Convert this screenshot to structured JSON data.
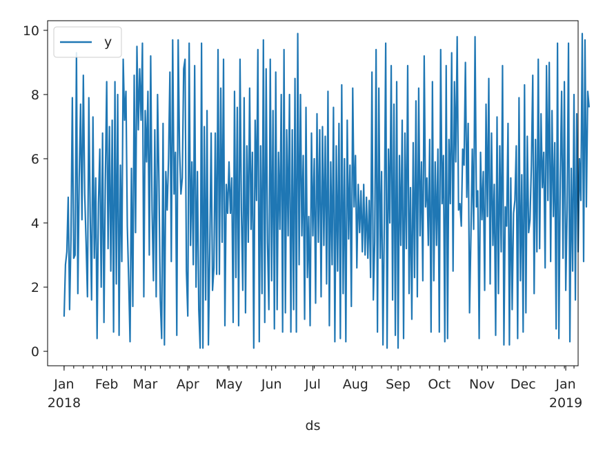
{
  "chart_data": {
    "type": "line",
    "xlabel": "ds",
    "ylabel": "",
    "xlim": [
      "2017-12-20",
      "2019-01-10"
    ],
    "ylim": [
      -0.45,
      10.3
    ],
    "yticks": [
      0,
      2,
      4,
      6,
      8,
      10
    ],
    "xticks": [
      {
        "date": "2018-01-01",
        "label": "Jan",
        "sublabel": "2018"
      },
      {
        "date": "2018-02-01",
        "label": "Feb",
        "sublabel": ""
      },
      {
        "date": "2018-03-01",
        "label": "Mar",
        "sublabel": ""
      },
      {
        "date": "2018-04-01",
        "label": "Apr",
        "sublabel": ""
      },
      {
        "date": "2018-05-01",
        "label": "May",
        "sublabel": ""
      },
      {
        "date": "2018-06-01",
        "label": "Jun",
        "sublabel": ""
      },
      {
        "date": "2018-07-01",
        "label": "Jul",
        "sublabel": ""
      },
      {
        "date": "2018-08-01",
        "label": "Aug",
        "sublabel": ""
      },
      {
        "date": "2018-09-01",
        "label": "Sep",
        "sublabel": ""
      },
      {
        "date": "2018-10-01",
        "label": "Oct",
        "sublabel": ""
      },
      {
        "date": "2018-11-01",
        "label": "Nov",
        "sublabel": ""
      },
      {
        "date": "2018-12-01",
        "label": "Dec",
        "sublabel": ""
      },
      {
        "date": "2019-01-01",
        "label": "Jan",
        "sublabel": "2019"
      }
    ],
    "legend": {
      "position": "top-left",
      "entries": [
        "y"
      ]
    },
    "grid": false,
    "series": [
      {
        "name": "y",
        "color": "#1f77b4",
        "x_start": "2018-01-01",
        "x_step_days": 1,
        "values": [
          1.08,
          2.7,
          3.1,
          4.8,
          1.3,
          3.5,
          7.9,
          2.9,
          3.0,
          9.3,
          1.8,
          5.4,
          7.7,
          4.1,
          8.6,
          4.9,
          3.4,
          1.7,
          7.9,
          4.2,
          1.6,
          7.3,
          2.9,
          5.4,
          0.4,
          4.6,
          6.3,
          2.0,
          6.8,
          0.9,
          5.3,
          8.4,
          3.2,
          7.0,
          2.5,
          7.2,
          0.6,
          8.4,
          2.1,
          8.0,
          0.5,
          5.8,
          2.8,
          9.1,
          7.2,
          8.1,
          3.9,
          2.2,
          0.3,
          5.7,
          1.4,
          8.6,
          3.7,
          9.5,
          6.9,
          8.8,
          7.2,
          9.6,
          1.7,
          7.5,
          5.9,
          8.1,
          3.0,
          9.2,
          4.4,
          2.2,
          6.9,
          1.7,
          8.0,
          5.3,
          1.6,
          0.4,
          7.1,
          0.2,
          5.6,
          4.4,
          6.0,
          8.7,
          2.8,
          9.7,
          4.9,
          6.2,
          0.5,
          9.7,
          6.3,
          4.9,
          5.4,
          8.8,
          9.1,
          2.5,
          1.1,
          9.6,
          3.3,
          5.9,
          2.7,
          8.9,
          2.0,
          5.6,
          1.3,
          0.1,
          9.6,
          0.1,
          7.0,
          1.6,
          7.5,
          0.2,
          3.2,
          6.8,
          1.9,
          2.6,
          6.8,
          2.4,
          9.4,
          2.4,
          8.2,
          3.4,
          9.1,
          0.8,
          5.2,
          4.3,
          5.9,
          4.3,
          5.4,
          0.9,
          8.1,
          2.3,
          7.6,
          0.8,
          9.1,
          4.4,
          1.9,
          7.9,
          1.2,
          6.4,
          3.4,
          8.2,
          3.8,
          6.2,
          0.1,
          7.2,
          4.7,
          9.4,
          0.3,
          6.4,
          1.8,
          9.7,
          0.9,
          8.8,
          3.4,
          1.3,
          9.1,
          2.2,
          7.5,
          0.7,
          8.7,
          1.3,
          6.2,
          3.8,
          8.0,
          0.6,
          9.4,
          1.2,
          6.9,
          3.6,
          8.0,
          0.6,
          6.9,
          1.3,
          8.5,
          0.6,
          9.9,
          2.7,
          8.0,
          3.6,
          6.1,
          1.0,
          7.6,
          2.3,
          4.2,
          0.8,
          6.8,
          3.6,
          6.0,
          1.5,
          7.4,
          3.4,
          6.9,
          1.7,
          7.0,
          3.3,
          6.7,
          2.1,
          8.1,
          0.8,
          5.9,
          2.7,
          7.6,
          0.3,
          6.4,
          2.5,
          7.1,
          0.4,
          8.3,
          1.8,
          6.0,
          0.3,
          7.2,
          3.5,
          5.8,
          1.4,
          8.2,
          4.5,
          6.1,
          2.6,
          5.2,
          3.7,
          5.0,
          3.1,
          5.2,
          3.0,
          4.8,
          2.9,
          4.7,
          2.3,
          8.7,
          1.6,
          3.4,
          9.4,
          0.6,
          8.2,
          2.9,
          5.6,
          0.2,
          4.0,
          9.6,
          0.1,
          6.3,
          4.0,
          8.9,
          1.6,
          7.7,
          0.5,
          8.4,
          0.1,
          6.1,
          3.3,
          7.2,
          0.4,
          6.8,
          3.2,
          8.9,
          1.8,
          5.1,
          1.0,
          6.5,
          2.3,
          7.8,
          1.7,
          8.2,
          3.6,
          5.9,
          2.2,
          9.2,
          4.5,
          5.4,
          3.3,
          6.6,
          0.6,
          8.4,
          2.2,
          5.9,
          3.3,
          6.3,
          0.6,
          9.4,
          4.6,
          6.1,
          0.3,
          8.9,
          0.4,
          6.6,
          4.6,
          9.3,
          2.5,
          8.4,
          5.9,
          9.8,
          4.4,
          4.6,
          3.9,
          6.3,
          5.8,
          9.0,
          4.8,
          7.1,
          1.2,
          3.6,
          6.3,
          3.8,
          9.8,
          4.5,
          5.0,
          0.4,
          6.2,
          4.1,
          5.6,
          1.9,
          7.7,
          4.2,
          8.5,
          2.1,
          6.8,
          3.3,
          5.2,
          0.5,
          7.3,
          1.8,
          6.4,
          3.1,
          8.9,
          0.2,
          4.5,
          3.9,
          7.1,
          0.2,
          5.4,
          1.3,
          4.3,
          4.7,
          6.4,
          0.4,
          7.9,
          2.2,
          5.5,
          0.6,
          8.3,
          1.2,
          6.7,
          3.7,
          4.1,
          5.8,
          8.6,
          1.8,
          6.6,
          3.1,
          9.1,
          3.2,
          7.4,
          5.1,
          6.2,
          2.6,
          8.9,
          4.7,
          9.0,
          2.8,
          7.5,
          4.2,
          6.5,
          0.7,
          9.6,
          0.4,
          5.4,
          8.1,
          2.9,
          8.4,
          1.9,
          4.4,
          9.6,
          0.3,
          5.7,
          2.5,
          8.0,
          1.6,
          7.4,
          3.1,
          6.0,
          4.7,
          9.9,
          2.8,
          9.7,
          4.5,
          8.1,
          7.6
        ]
      }
    ]
  }
}
